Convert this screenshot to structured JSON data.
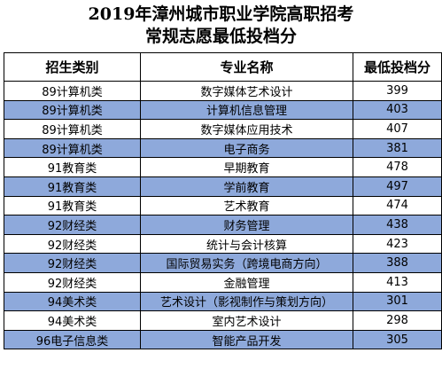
{
  "title_line1": "2019年漳州城市职业学院高职招考",
  "title_line2": "常规志愿最低投档分",
  "headers": [
    "招生类别",
    "专业名称",
    "最低投档分"
  ],
  "rows": [
    {
      "category": "89计算机类",
      "major": "数字媒体艺术设计",
      "score": "399",
      "highlight": false
    },
    {
      "category": "89计算机类",
      "major": "计算机信息管理",
      "score": "403",
      "highlight": true
    },
    {
      "category": "89计算机类",
      "major": "数字媒体应用技术",
      "score": "407",
      "highlight": false
    },
    {
      "category": "89计算机类",
      "major": "电子商务",
      "score": "381",
      "highlight": true
    },
    {
      "category": "91教育类",
      "major": "早期教育",
      "score": "478",
      "highlight": false
    },
    {
      "category": "91教育类",
      "major": "学前教育",
      "score": "497",
      "highlight": true
    },
    {
      "category": "91教育类",
      "major": "艺术教育",
      "score": "474",
      "highlight": false
    },
    {
      "category": "92财经类",
      "major": "财务管理",
      "score": "438",
      "highlight": true
    },
    {
      "category": "92财经类",
      "major": "统计与会计核算",
      "score": "423",
      "highlight": false
    },
    {
      "category": "92财经类",
      "major": "国际贸易实务（跨境电商方向）",
      "score": "388",
      "highlight": true
    },
    {
      "category": "92财经类",
      "major": "金融管理",
      "score": "413",
      "highlight": false
    },
    {
      "category": "94美术类",
      "major": "艺术设计（影视制作与策划方向）",
      "score": "301",
      "highlight": true
    },
    {
      "category": "94美术类",
      "major": "室内艺术设计",
      "score": "298",
      "highlight": false
    },
    {
      "category": "96电子信息类",
      "major": "智能产品开发",
      "score": "305",
      "highlight": true
    }
  ],
  "colors": {
    "highlight_row": "#8ea9db",
    "border": "#000000",
    "background": "#ffffff"
  }
}
